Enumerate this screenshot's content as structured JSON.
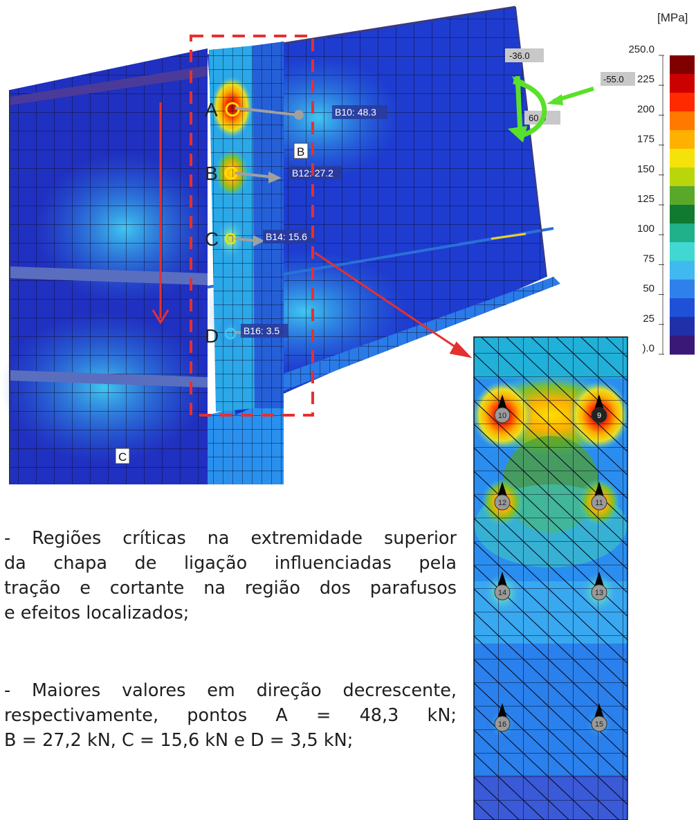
{
  "legend": {
    "unit": "[MPa]",
    "ticks": [
      "250.0",
      "225",
      "200",
      "175",
      "150",
      "125",
      "100",
      "75",
      "50",
      "25",
      ").0"
    ],
    "colors": [
      "#800000",
      "#cc0000",
      "#ff2a00",
      "#ff7800",
      "#ffb000",
      "#f5e20a",
      "#b8d60a",
      "#5aa82a",
      "#107a30",
      "#20b08a",
      "#40d8d0",
      "#40b8f0",
      "#2e80ea",
      "#1e50d8",
      "#2030a8",
      "#3a1878"
    ]
  },
  "model": {
    "points": [
      "A",
      "B",
      "C",
      "D"
    ],
    "bolt_labels": [
      "B10: 48.3",
      "B12: 27.2",
      "B14: 15.6",
      "B16: 3.5"
    ],
    "region_labels": [
      "B",
      "C"
    ],
    "load_values": [
      "-36.0",
      "-55.0",
      "60.0"
    ]
  },
  "zoom": {
    "bolts": [
      "10",
      "9",
      "12",
      "11",
      "14",
      "13",
      "16",
      "15"
    ]
  },
  "notes": [
    {
      "lines": [
        "- Regiões críticas na extremidade superior",
        "da chapa de ligação influenciadas pela",
        "tração e cortante na região dos parafusos",
        " e efeitos localizados;"
      ]
    },
    {
      "lines": [
        "- Maiores valores em direção decrescente,",
        "respectivamente, pontos A = 48,3 kN;",
        "B = 27,2 kN, C = 15,6 kN e D = 3,5 kN;"
      ]
    }
  ]
}
